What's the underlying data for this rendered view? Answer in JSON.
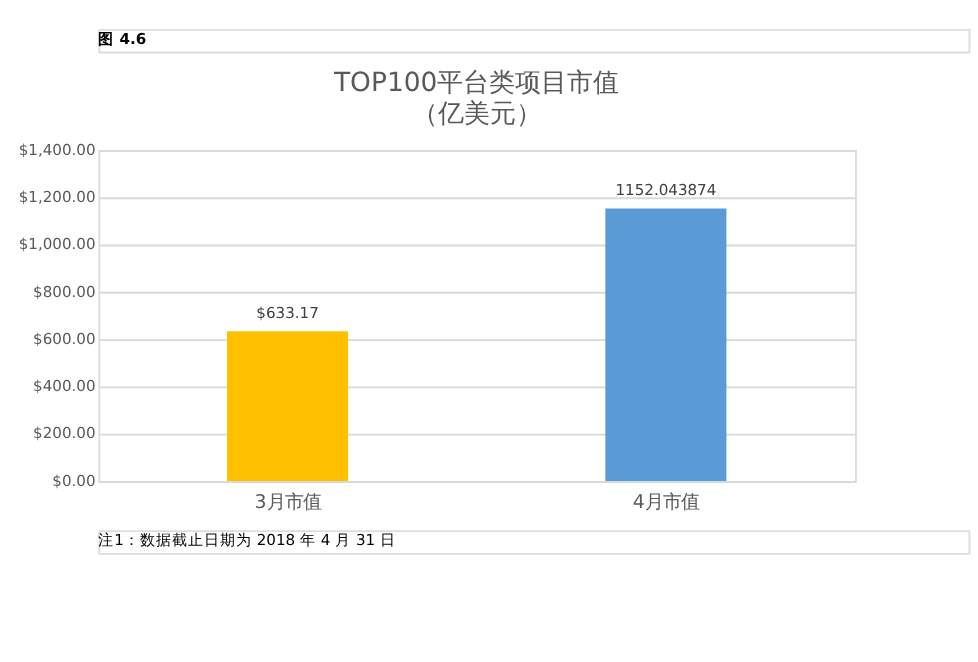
{
  "chart_data": {
    "type": "bar",
    "title": [
      "TOP100平台类项目市值",
      "（亿美元）"
    ],
    "categories": [
      "3月市值",
      "4月市值"
    ],
    "values": [
      633.17,
      1152.043874
    ],
    "colors": [
      "#ffc000",
      "#5b9bd5"
    ],
    "value_labels": [
      "$633.17",
      "1152.043874"
    ],
    "ylim": [
      0,
      1400
    ],
    "yticks": [
      {
        "value": 0,
        "label": "$0.00"
      },
      {
        "value": 200,
        "label": "$200.00"
      },
      {
        "value": 400,
        "label": "$400.00"
      },
      {
        "value": 600,
        "label": "$600.00"
      },
      {
        "value": 800,
        "label": "$800.00"
      },
      {
        "value": 1000,
        "label": "$1,000.00"
      },
      {
        "value": 1200,
        "label": "$1,200.00"
      },
      {
        "value": 1400,
        "label": "$1,400.00"
      }
    ],
    "grid": "y",
    "annotations": [
      "图 4.6",
      "注1：数据截止日期为 2018 年 4 月 31 日"
    ]
  }
}
